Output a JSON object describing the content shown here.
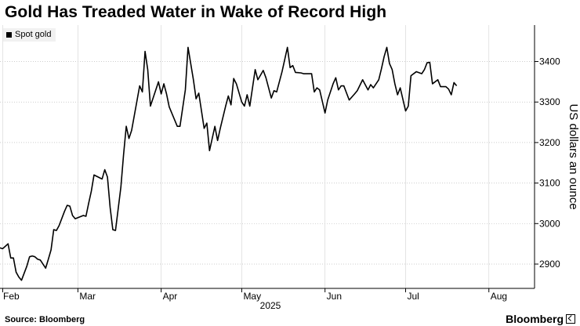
{
  "chart_data": {
    "type": "line",
    "title": "Gold Has Treaded Water in Wake of Record High",
    "ylabel": "US dollars an ounce",
    "xlabel": "2025",
    "ylim": [
      2840,
      3490
    ],
    "yticks": [
      2900,
      3000,
      3100,
      3200,
      3300,
      3400
    ],
    "xlim": [
      "2025-01-31",
      "2025-08-18"
    ],
    "xticks": [
      {
        "label": "Feb",
        "date": "2025-02-01"
      },
      {
        "label": "Mar",
        "date": "2025-03-01"
      },
      {
        "label": "Apr",
        "date": "2025-04-01"
      },
      {
        "label": "May",
        "date": "2025-05-01"
      },
      {
        "label": "Jun",
        "date": "2025-06-01"
      },
      {
        "label": "Jul",
        "date": "2025-07-01"
      },
      {
        "label": "Aug",
        "date": "2025-08-01"
      }
    ],
    "grid": true,
    "legend_position": "top-left",
    "series": [
      {
        "name": "Spot gold",
        "color": "#000000",
        "points": [
          [
            "2025-01-31",
            2940
          ],
          [
            "2025-02-01",
            2938
          ],
          [
            "2025-02-03",
            2950
          ],
          [
            "2025-02-04",
            2915
          ],
          [
            "2025-02-05",
            2915
          ],
          [
            "2025-02-06",
            2880
          ],
          [
            "2025-02-07",
            2868
          ],
          [
            "2025-02-08",
            2860
          ],
          [
            "2025-02-10",
            2895
          ],
          [
            "2025-02-11",
            2918
          ],
          [
            "2025-02-12",
            2920
          ],
          [
            "2025-02-13",
            2918
          ],
          [
            "2025-02-14",
            2912
          ],
          [
            "2025-02-15",
            2910
          ],
          [
            "2025-02-17",
            2890
          ],
          [
            "2025-02-18",
            2912
          ],
          [
            "2025-02-19",
            2935
          ],
          [
            "2025-02-20",
            2985
          ],
          [
            "2025-02-21",
            2983
          ],
          [
            "2025-02-22",
            2995
          ],
          [
            "2025-02-24",
            3030
          ],
          [
            "2025-02-25",
            3045
          ],
          [
            "2025-02-26",
            3043
          ],
          [
            "2025-02-27",
            3020
          ],
          [
            "2025-02-28",
            3012
          ],
          [
            "2025-03-03",
            3020
          ],
          [
            "2025-03-04",
            3018
          ],
          [
            "2025-03-05",
            3050
          ],
          [
            "2025-03-06",
            3080
          ],
          [
            "2025-03-07",
            3120
          ],
          [
            "2025-03-10",
            3110
          ],
          [
            "2025-03-11",
            3133
          ],
          [
            "2025-03-12",
            3115
          ],
          [
            "2025-03-13",
            3040
          ],
          [
            "2025-03-14",
            2985
          ],
          [
            "2025-03-15",
            2983
          ],
          [
            "2025-03-17",
            3090
          ],
          [
            "2025-03-18",
            3170
          ],
          [
            "2025-03-19",
            3240
          ],
          [
            "2025-03-20",
            3210
          ],
          [
            "2025-03-21",
            3230
          ],
          [
            "2025-03-24",
            3340
          ],
          [
            "2025-03-25",
            3325
          ],
          [
            "2025-03-26",
            3425
          ],
          [
            "2025-03-27",
            3380
          ],
          [
            "2025-03-28",
            3290
          ],
          [
            "2025-03-31",
            3350
          ],
          [
            "2025-04-01",
            3320
          ],
          [
            "2025-04-02",
            3345
          ],
          [
            "2025-04-03",
            3320
          ],
          [
            "2025-04-04",
            3288
          ],
          [
            "2025-04-07",
            3240
          ],
          [
            "2025-04-08",
            3240
          ],
          [
            "2025-04-10",
            3330
          ],
          [
            "2025-04-11",
            3435
          ],
          [
            "2025-04-13",
            3355
          ],
          [
            "2025-04-14",
            3308
          ],
          [
            "2025-04-15",
            3322
          ],
          [
            "2025-04-17",
            3235
          ],
          [
            "2025-04-18",
            3248
          ],
          [
            "2025-04-19",
            3180
          ],
          [
            "2025-04-21",
            3240
          ],
          [
            "2025-04-22",
            3205
          ],
          [
            "2025-04-23",
            3235
          ],
          [
            "2025-04-25",
            3290
          ],
          [
            "2025-04-26",
            3315
          ],
          [
            "2025-04-27",
            3293
          ],
          [
            "2025-04-28",
            3358
          ],
          [
            "2025-04-29",
            3345
          ],
          [
            "2025-05-01",
            3300
          ],
          [
            "2025-05-02",
            3290
          ],
          [
            "2025-05-03",
            3318
          ],
          [
            "2025-05-04",
            3290
          ],
          [
            "2025-05-06",
            3380
          ],
          [
            "2025-05-07",
            3355
          ],
          [
            "2025-05-09",
            3378
          ],
          [
            "2025-05-10",
            3360
          ],
          [
            "2025-05-12",
            3310
          ],
          [
            "2025-05-13",
            3328
          ],
          [
            "2025-05-14",
            3325
          ],
          [
            "2025-05-16",
            3375
          ],
          [
            "2025-05-17",
            3405
          ],
          [
            "2025-05-18",
            3435
          ],
          [
            "2025-05-19",
            3385
          ],
          [
            "2025-05-20",
            3390
          ],
          [
            "2025-05-21",
            3373
          ],
          [
            "2025-05-23",
            3372
          ],
          [
            "2025-05-24",
            3370
          ],
          [
            "2025-05-27",
            3370
          ],
          [
            "2025-05-28",
            3325
          ],
          [
            "2025-05-29",
            3335
          ],
          [
            "2025-05-30",
            3330
          ],
          [
            "2025-06-01",
            3273
          ],
          [
            "2025-06-02",
            3305
          ],
          [
            "2025-06-04",
            3345
          ],
          [
            "2025-06-05",
            3360
          ],
          [
            "2025-06-06",
            3330
          ],
          [
            "2025-06-07",
            3340
          ],
          [
            "2025-06-08",
            3340
          ],
          [
            "2025-06-10",
            3305
          ],
          [
            "2025-06-12",
            3320
          ],
          [
            "2025-06-13",
            3328
          ],
          [
            "2025-06-15",
            3355
          ],
          [
            "2025-06-17",
            3330
          ],
          [
            "2025-06-18",
            3343
          ],
          [
            "2025-06-19",
            3335
          ],
          [
            "2025-06-21",
            3355
          ],
          [
            "2025-06-22",
            3382
          ],
          [
            "2025-06-23",
            3412
          ],
          [
            "2025-06-24",
            3435
          ],
          [
            "2025-06-25",
            3395
          ],
          [
            "2025-06-26",
            3380
          ],
          [
            "2025-06-27",
            3345
          ],
          [
            "2025-06-28",
            3318
          ],
          [
            "2025-06-29",
            3335
          ],
          [
            "2025-07-01",
            3278
          ],
          [
            "2025-07-02",
            3290
          ],
          [
            "2025-07-03",
            3365
          ],
          [
            "2025-07-05",
            3375
          ],
          [
            "2025-07-07",
            3370
          ],
          [
            "2025-07-08",
            3380
          ],
          [
            "2025-07-09",
            3397
          ],
          [
            "2025-07-10",
            3398
          ],
          [
            "2025-07-11",
            3345
          ],
          [
            "2025-07-13",
            3355
          ],
          [
            "2025-07-14",
            3338
          ],
          [
            "2025-07-16",
            3338
          ],
          [
            "2025-07-17",
            3332
          ],
          [
            "2025-07-18",
            3318
          ],
          [
            "2025-07-19",
            3348
          ],
          [
            "2025-07-20",
            3340
          ]
        ]
      }
    ]
  },
  "source": "Source: Bloomberg",
  "brand": "Bloomberg"
}
